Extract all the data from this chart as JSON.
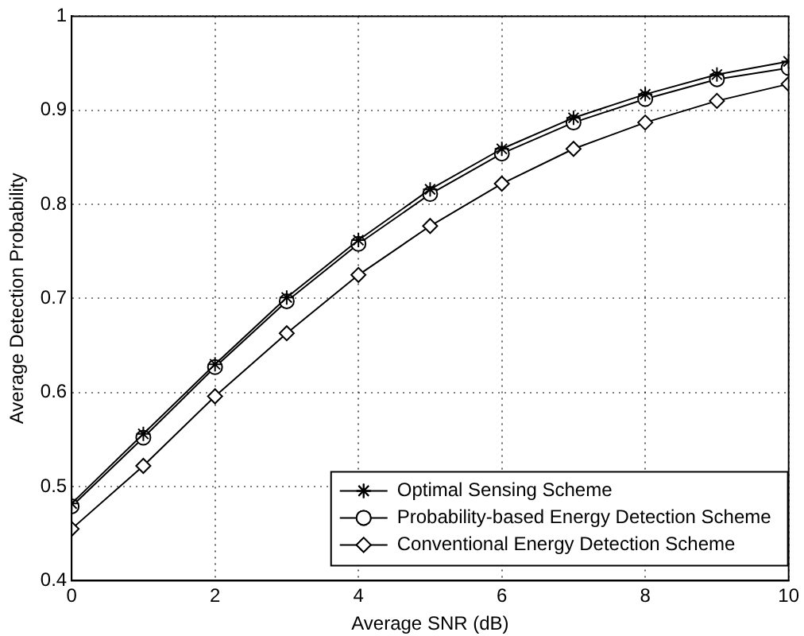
{
  "chart_data": {
    "type": "line",
    "xlabel": "Average SNR (dB)",
    "ylabel": "Average Detection Probability",
    "x": [
      0,
      1,
      2,
      3,
      4,
      5,
      6,
      7,
      8,
      9,
      10
    ],
    "series": [
      {
        "name": "Optimal Sensing Scheme",
        "color": "#000000",
        "marker": "cross",
        "values": [
          0.482,
          0.556,
          0.63,
          0.701,
          0.762,
          0.816,
          0.859,
          0.892,
          0.917,
          0.938,
          0.952
        ]
      },
      {
        "name": "Probability-based Energy Detection Scheme",
        "color": "#000000",
        "marker": "circle",
        "values": [
          0.479,
          0.552,
          0.627,
          0.697,
          0.758,
          0.811,
          0.854,
          0.887,
          0.912,
          0.933,
          0.945
        ]
      },
      {
        "name": "Conventional Energy Detection Scheme",
        "color": "#000000",
        "marker": "diamond",
        "values": [
          0.455,
          0.522,
          0.596,
          0.663,
          0.725,
          0.777,
          0.822,
          0.859,
          0.887,
          0.91,
          0.928
        ]
      }
    ],
    "xlim": [
      0,
      10
    ],
    "xticks": [
      0,
      2,
      4,
      6,
      8,
      10
    ],
    "ylim": [
      0.4,
      1
    ],
    "yticks": [
      0.4,
      0.5,
      0.6,
      0.7,
      0.8,
      0.9,
      1
    ],
    "grid": true,
    "legend": "bottom right",
    "line_style": "solid"
  }
}
